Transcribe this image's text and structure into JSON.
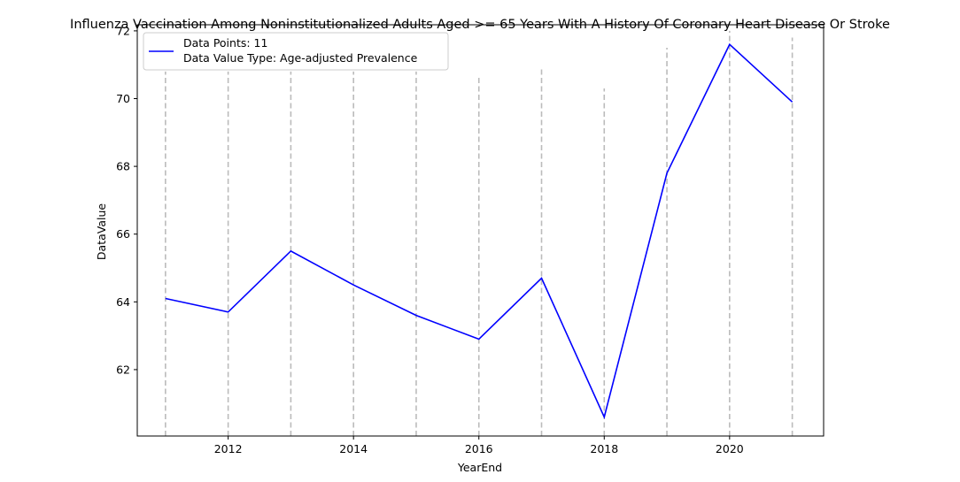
{
  "chart_data": {
    "type": "line",
    "title": "Influenza Vaccination Among Noninstitutionalized Adults Aged >= 65 Years With A History Of Coronary Heart Disease Or Stroke",
    "xlabel": "YearEnd",
    "ylabel": "DataValue",
    "x": [
      2011,
      2012,
      2013,
      2014,
      2015,
      2016,
      2017,
      2018,
      2019,
      2020,
      2021
    ],
    "series": [
      {
        "name": "Data Points: 11",
        "values": [
          64.1,
          63.7,
          65.5,
          64.5,
          63.6,
          62.9,
          64.7,
          60.6,
          67.8,
          71.6,
          69.9
        ],
        "color": "#0000ff"
      }
    ],
    "legend": {
      "lines": [
        "Data Points: 11",
        "Data Value Type: Age-adjusted Prevalence"
      ],
      "location": "upper-left"
    },
    "vlines": {
      "color": "#bbbbbb",
      "style": "dashed",
      "x": [
        2011,
        2012,
        2013,
        2014,
        2015,
        2016,
        2017,
        2018,
        2019,
        2020,
        2021
      ],
      "ymax": [
        70.8,
        70.8,
        70.8,
        70.8,
        70.8,
        70.7,
        70.95,
        70.3,
        71.5,
        72.0,
        71.8
      ]
    },
    "xticks": [
      2012,
      2014,
      2016,
      2018,
      2020
    ],
    "yticks": [
      62,
      64,
      66,
      68,
      70,
      72
    ],
    "xlim": [
      2010.55,
      2021.5
    ],
    "ylim": [
      60.04,
      72.18
    ],
    "grid": false
  }
}
